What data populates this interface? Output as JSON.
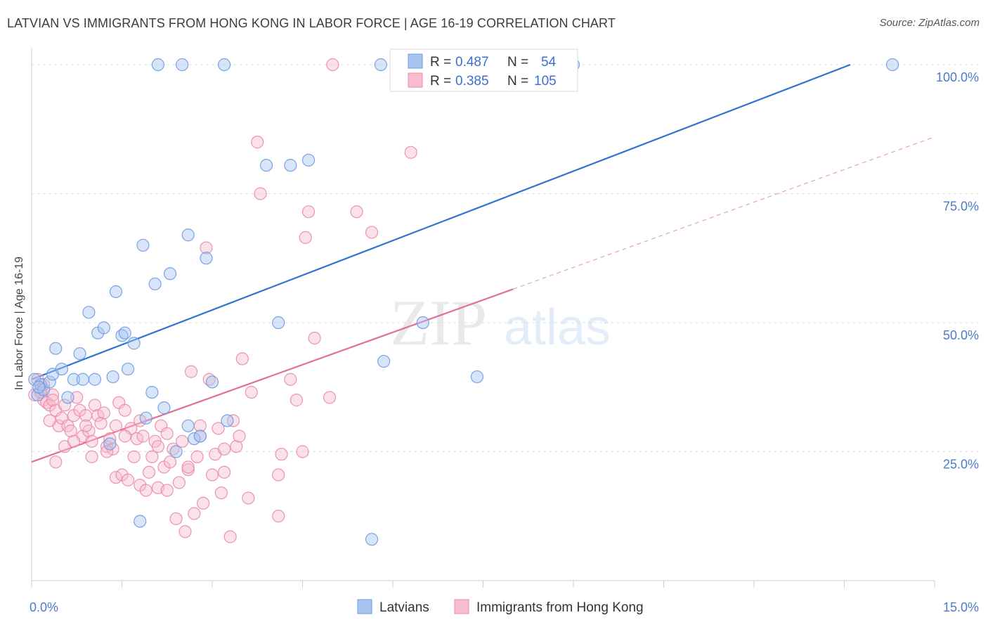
{
  "header": {
    "title": "LATVIAN VS IMMIGRANTS FROM HONG KONG IN LABOR FORCE | AGE 16-19 CORRELATION CHART",
    "source": "Source: ZipAtlas.com"
  },
  "watermark": {
    "zip": "ZIP",
    "atlas": "atlas"
  },
  "legend": {
    "rows": [
      {
        "r_label": "R =",
        "r_value": "0.487",
        "n_label": "N =",
        "n_value": "54",
        "color": "#a8c4ef",
        "stroke": "#6b9be0"
      },
      {
        "r_label": "R =",
        "r_value": "0.385",
        "n_label": "N =",
        "n_value": "105",
        "color": "#f7bccd",
        "stroke": "#e98aa8"
      }
    ]
  },
  "bottom_legend": [
    {
      "label": "Latvians",
      "color": "#a8c4ef",
      "stroke": "#6b9be0"
    },
    {
      "label": "Immigrants from Hong Kong",
      "color": "#f7bccd",
      "stroke": "#e98aa8"
    }
  ],
  "chart_data": {
    "type": "scatter",
    "title": "LATVIAN VS IMMIGRANTS FROM HONG KONG IN LABOR FORCE | AGE 16-19 CORRELATION CHART",
    "xlabel": "",
    "ylabel": "In Labor Force | Age 16-19",
    "xlim": [
      0,
      15
    ],
    "ylim": [
      0,
      103
    ],
    "x_tick_labels": [
      "0.0%",
      "15.0%"
    ],
    "y_ticks": [
      25,
      50,
      75,
      100
    ],
    "y_tick_labels": [
      "25.0%",
      "50.0%",
      "75.0%",
      "100.0%"
    ],
    "grid": true,
    "legend_position": "top-center",
    "series": [
      {
        "name": "Latvians",
        "color": "#6b9be0",
        "fill": "#a8c4ef",
        "trend": {
          "x": [
            0,
            13.6
          ],
          "y": [
            39,
            100
          ],
          "color": "#2f72d4"
        },
        "points": [
          [
            0.05,
            39
          ],
          [
            0.1,
            36
          ],
          [
            0.15,
            38
          ],
          [
            0.2,
            37
          ],
          [
            0.3,
            38.5
          ],
          [
            0.35,
            40
          ],
          [
            0.4,
            45
          ],
          [
            0.5,
            41
          ],
          [
            0.6,
            35.5
          ],
          [
            0.7,
            39
          ],
          [
            0.8,
            44
          ],
          [
            0.85,
            39
          ],
          [
            0.95,
            52
          ],
          [
            1.05,
            39
          ],
          [
            1.1,
            48
          ],
          [
            1.2,
            49
          ],
          [
            1.3,
            26.5
          ],
          [
            1.35,
            39.5
          ],
          [
            1.4,
            56
          ],
          [
            1.5,
            47.5
          ],
          [
            1.55,
            48
          ],
          [
            1.6,
            41
          ],
          [
            1.7,
            46
          ],
          [
            1.8,
            11.5
          ],
          [
            1.85,
            65
          ],
          [
            1.9,
            31.5
          ],
          [
            2.0,
            36.5
          ],
          [
            2.05,
            57.5
          ],
          [
            2.2,
            33.5
          ],
          [
            2.3,
            59.5
          ],
          [
            2.4,
            25
          ],
          [
            2.6,
            67
          ],
          [
            2.6,
            30
          ],
          [
            2.7,
            27.5
          ],
          [
            2.8,
            28
          ],
          [
            2.9,
            62.5
          ],
          [
            3.0,
            38.5
          ],
          [
            3.25,
            31
          ],
          [
            3.9,
            80.5
          ],
          [
            4.1,
            50
          ],
          [
            4.3,
            80.5
          ],
          [
            4.6,
            81.5
          ],
          [
            5.85,
            42.5
          ],
          [
            5.65,
            8
          ],
          [
            6.5,
            50
          ],
          [
            7.4,
            39.5
          ],
          [
            2.1,
            100
          ],
          [
            2.5,
            100
          ],
          [
            3.2,
            100
          ],
          [
            5.8,
            100
          ],
          [
            6.2,
            100
          ],
          [
            9.0,
            100
          ],
          [
            14.3,
            100
          ],
          [
            0.12,
            37.5
          ]
        ]
      },
      {
        "name": "Immigrants from Hong Kong",
        "color": "#e98aa8",
        "fill": "#f7bccd",
        "trend": {
          "x": [
            0,
            8.0
          ],
          "y": [
            23,
            56.5
          ],
          "color": "#e0709a"
        },
        "trend_ext": {
          "x": [
            8.0,
            15
          ],
          "y": [
            56.5,
            86
          ],
          "color": "#e8a0b8"
        },
        "points": [
          [
            0.05,
            36
          ],
          [
            0.1,
            39
          ],
          [
            0.15,
            37
          ],
          [
            0.2,
            35
          ],
          [
            0.25,
            34.5
          ],
          [
            0.3,
            34
          ],
          [
            0.35,
            36
          ],
          [
            0.4,
            33
          ],
          [
            0.4,
            23
          ],
          [
            0.45,
            30
          ],
          [
            0.5,
            31.5
          ],
          [
            0.55,
            26
          ],
          [
            0.6,
            30
          ],
          [
            0.65,
            29
          ],
          [
            0.7,
            32
          ],
          [
            0.75,
            35.5
          ],
          [
            0.8,
            33
          ],
          [
            0.85,
            28
          ],
          [
            0.9,
            32
          ],
          [
            0.95,
            29
          ],
          [
            1.0,
            27
          ],
          [
            1.05,
            34
          ],
          [
            1.1,
            32
          ],
          [
            1.15,
            30.5
          ],
          [
            1.2,
            32.5
          ],
          [
            1.25,
            26
          ],
          [
            1.3,
            27.5
          ],
          [
            1.35,
            25.5
          ],
          [
            1.4,
            20
          ],
          [
            1.45,
            34.5
          ],
          [
            1.5,
            20.5
          ],
          [
            1.55,
            33
          ],
          [
            1.6,
            19.5
          ],
          [
            1.65,
            29.5
          ],
          [
            1.7,
            24
          ],
          [
            1.75,
            27.5
          ],
          [
            1.8,
            18.5
          ],
          [
            1.85,
            28
          ],
          [
            1.9,
            17.5
          ],
          [
            1.95,
            21
          ],
          [
            2.0,
            24
          ],
          [
            2.05,
            27
          ],
          [
            2.1,
            18
          ],
          [
            2.15,
            30
          ],
          [
            2.2,
            22
          ],
          [
            2.25,
            28.5
          ],
          [
            2.3,
            23
          ],
          [
            2.35,
            25.5
          ],
          [
            2.4,
            12
          ],
          [
            2.45,
            19
          ],
          [
            2.5,
            27
          ],
          [
            2.55,
            9.5
          ],
          [
            2.6,
            21.5
          ],
          [
            2.65,
            40.5
          ],
          [
            2.7,
            13
          ],
          [
            2.75,
            24
          ],
          [
            2.8,
            30
          ],
          [
            2.85,
            15
          ],
          [
            2.9,
            64.5
          ],
          [
            2.95,
            39
          ],
          [
            3.0,
            20.5
          ],
          [
            3.05,
            24.5
          ],
          [
            3.1,
            29.5
          ],
          [
            3.15,
            17
          ],
          [
            3.2,
            25.5
          ],
          [
            3.3,
            8.5
          ],
          [
            3.35,
            31
          ],
          [
            3.4,
            26
          ],
          [
            3.5,
            43
          ],
          [
            3.6,
            16
          ],
          [
            3.65,
            36.5
          ],
          [
            3.75,
            85
          ],
          [
            3.8,
            75
          ],
          [
            4.1,
            20.5
          ],
          [
            4.15,
            24.5
          ],
          [
            4.3,
            39
          ],
          [
            4.4,
            35
          ],
          [
            4.55,
            66.5
          ],
          [
            4.6,
            71.5
          ],
          [
            4.7,
            47
          ],
          [
            4.95,
            35.5
          ],
          [
            5.0,
            100
          ],
          [
            5.4,
            71.5
          ],
          [
            5.65,
            67.5
          ],
          [
            6.3,
            83
          ],
          [
            4.1,
            12.5
          ],
          [
            4.5,
            25
          ],
          [
            3.2,
            21
          ],
          [
            2.1,
            26
          ],
          [
            1.0,
            24
          ],
          [
            0.7,
            27
          ],
          [
            0.3,
            31
          ],
          [
            1.8,
            31
          ],
          [
            2.6,
            22
          ],
          [
            3.45,
            28
          ],
          [
            1.25,
            25
          ],
          [
            0.55,
            34
          ],
          [
            0.9,
            30
          ],
          [
            1.55,
            28
          ],
          [
            2.25,
            17.5
          ],
          [
            0.2,
            38
          ],
          [
            0.35,
            35
          ],
          [
            1.4,
            30
          ],
          [
            2.8,
            28
          ],
          [
            0.15,
            36.5
          ]
        ]
      }
    ]
  }
}
